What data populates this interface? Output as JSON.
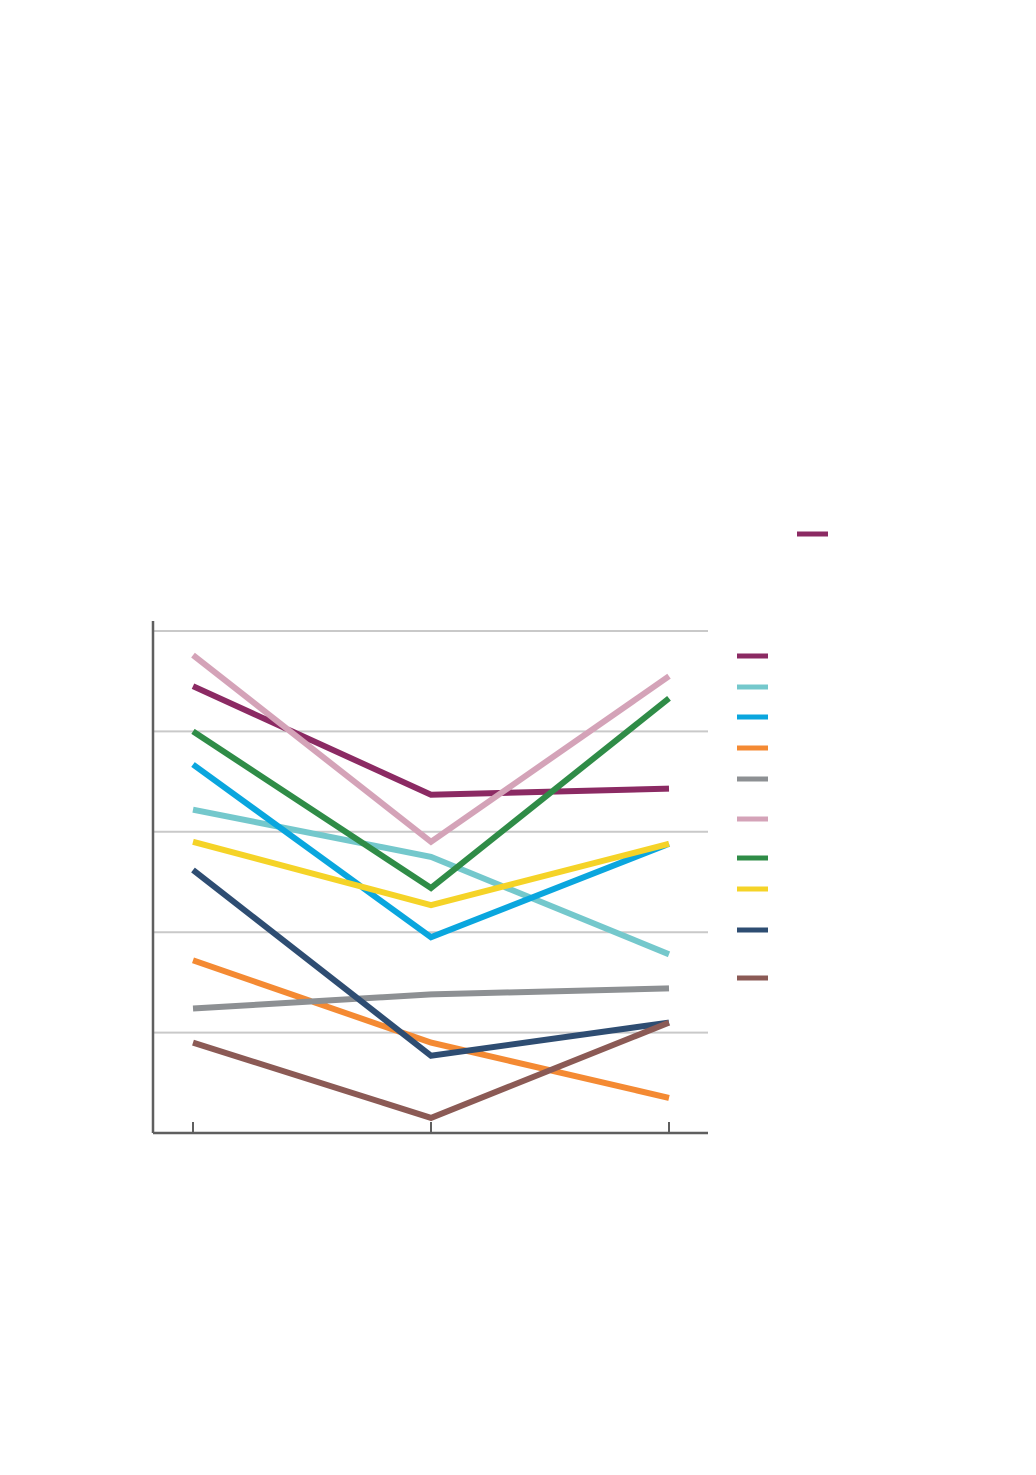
{
  "chart_data": {
    "type": "line",
    "x": [
      0,
      1,
      2
    ],
    "ylim": [
      0,
      5
    ],
    "yticks": [
      1,
      2,
      3,
      4,
      5
    ],
    "grid": true,
    "legend_position": "right",
    "series": [
      {
        "color": "#8B2A63",
        "values": [
          4.45,
          3.37,
          3.43
        ]
      },
      {
        "color": "#74C8CC",
        "values": [
          3.22,
          2.75,
          1.78
        ]
      },
      {
        "color": "#0AA6DE",
        "values": [
          3.67,
          1.95,
          2.88
        ]
      },
      {
        "color": "#F48A33",
        "values": [
          1.72,
          0.9,
          0.35
        ]
      },
      {
        "color": "#8D9093",
        "values": [
          1.24,
          1.38,
          1.44
        ]
      },
      {
        "color": "#D4A3B8",
        "values": [
          4.76,
          2.9,
          4.55
        ]
      },
      {
        "color": "#2F8C47",
        "values": [
          4.0,
          2.44,
          4.33
        ]
      },
      {
        "color": "#F5D327",
        "values": [
          2.9,
          2.27,
          2.88
        ]
      },
      {
        "color": "#2E4D72",
        "values": [
          2.62,
          0.77,
          1.1
        ]
      },
      {
        "color": "#8B5A55",
        "values": [
          0.9,
          0.15,
          1.1
        ]
      }
    ],
    "top_legend_color": "#8B2A63"
  }
}
